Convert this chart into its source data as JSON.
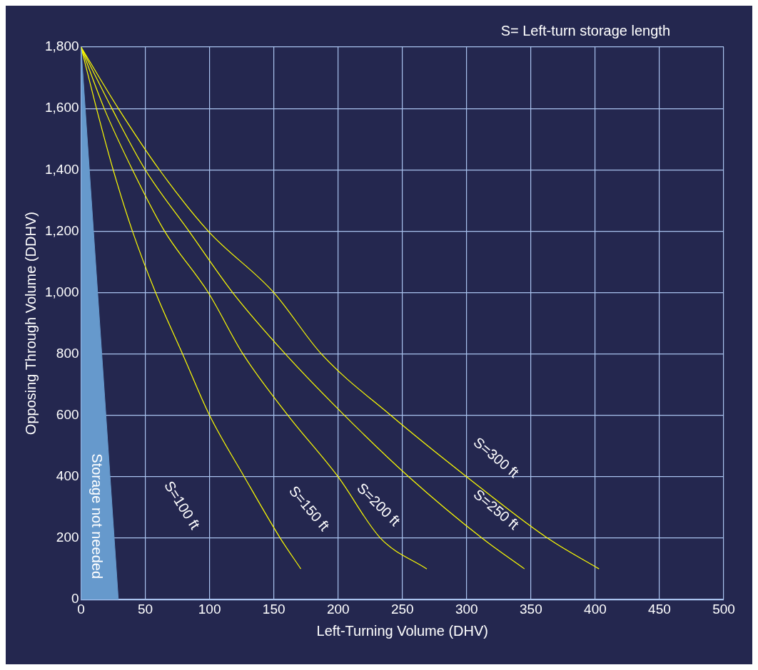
{
  "chart_data": {
    "type": "line",
    "xlabel": "Left-Turning Volume (DHV)",
    "ylabel": "Opposing Through Volume (DDHV)",
    "xlim": [
      0,
      500
    ],
    "xticks": [
      0,
      50,
      100,
      150,
      200,
      250,
      300,
      350,
      400,
      450,
      500
    ],
    "ylim": [
      0,
      1800
    ],
    "yticks": [
      {
        "value": 0,
        "label": "0"
      },
      {
        "value": 200,
        "label": "200"
      },
      {
        "value": 400,
        "label": "400"
      },
      {
        "value": 600,
        "label": "600"
      },
      {
        "value": 800,
        "label": "800"
      },
      {
        "value": 1000,
        "label": "1,000"
      },
      {
        "value": 1200,
        "label": "1,200"
      },
      {
        "value": 1400,
        "label": "1,400"
      },
      {
        "value": 1600,
        "label": "1,600"
      },
      {
        "value": 1800,
        "label": "1,800"
      }
    ],
    "grid": true,
    "legend": false,
    "marker": "none",
    "line_style": "solid",
    "series": [
      {
        "type": "area",
        "color": "#6699cc",
        "x": [
          0,
          29
        ],
        "values": [
          1800,
          0
        ]
      },
      {
        "color": "#ffff00",
        "x": [
          0,
          12,
          25,
          40,
          58,
          79,
          100,
          127,
          155,
          171
        ],
        "values": [
          1800,
          1600,
          1400,
          1200,
          1000,
          800,
          600,
          400,
          200,
          100
        ]
      },
      {
        "color": "#ffff00",
        "x": [
          0,
          18,
          40,
          65,
          99,
          126,
          161,
          200,
          233,
          269
        ],
        "values": [
          1800,
          1600,
          1400,
          1200,
          1000,
          800,
          600,
          400,
          200,
          100
        ]
      },
      {
        "color": "#ffff00",
        "x": [
          0,
          24,
          50,
          84,
          118,
          159,
          205,
          255,
          312,
          345
        ],
        "values": [
          1800,
          1600,
          1400,
          1200,
          1000,
          800,
          600,
          400,
          200,
          100
        ]
      },
      {
        "color": "#ffff00",
        "x": [
          0,
          29,
          61,
          99,
          150,
          187,
          241,
          300,
          363,
          403
        ],
        "values": [
          1800,
          1600,
          1400,
          1200,
          1000,
          800,
          600,
          400,
          200,
          100
        ]
      }
    ],
    "annotations": [
      "S= Left-turn storage length",
      "Storage not needed",
      "S=100 ft",
      "S=150 ft",
      "S=200 ft",
      "S=250 ft",
      "S=300 ft"
    ]
  }
}
